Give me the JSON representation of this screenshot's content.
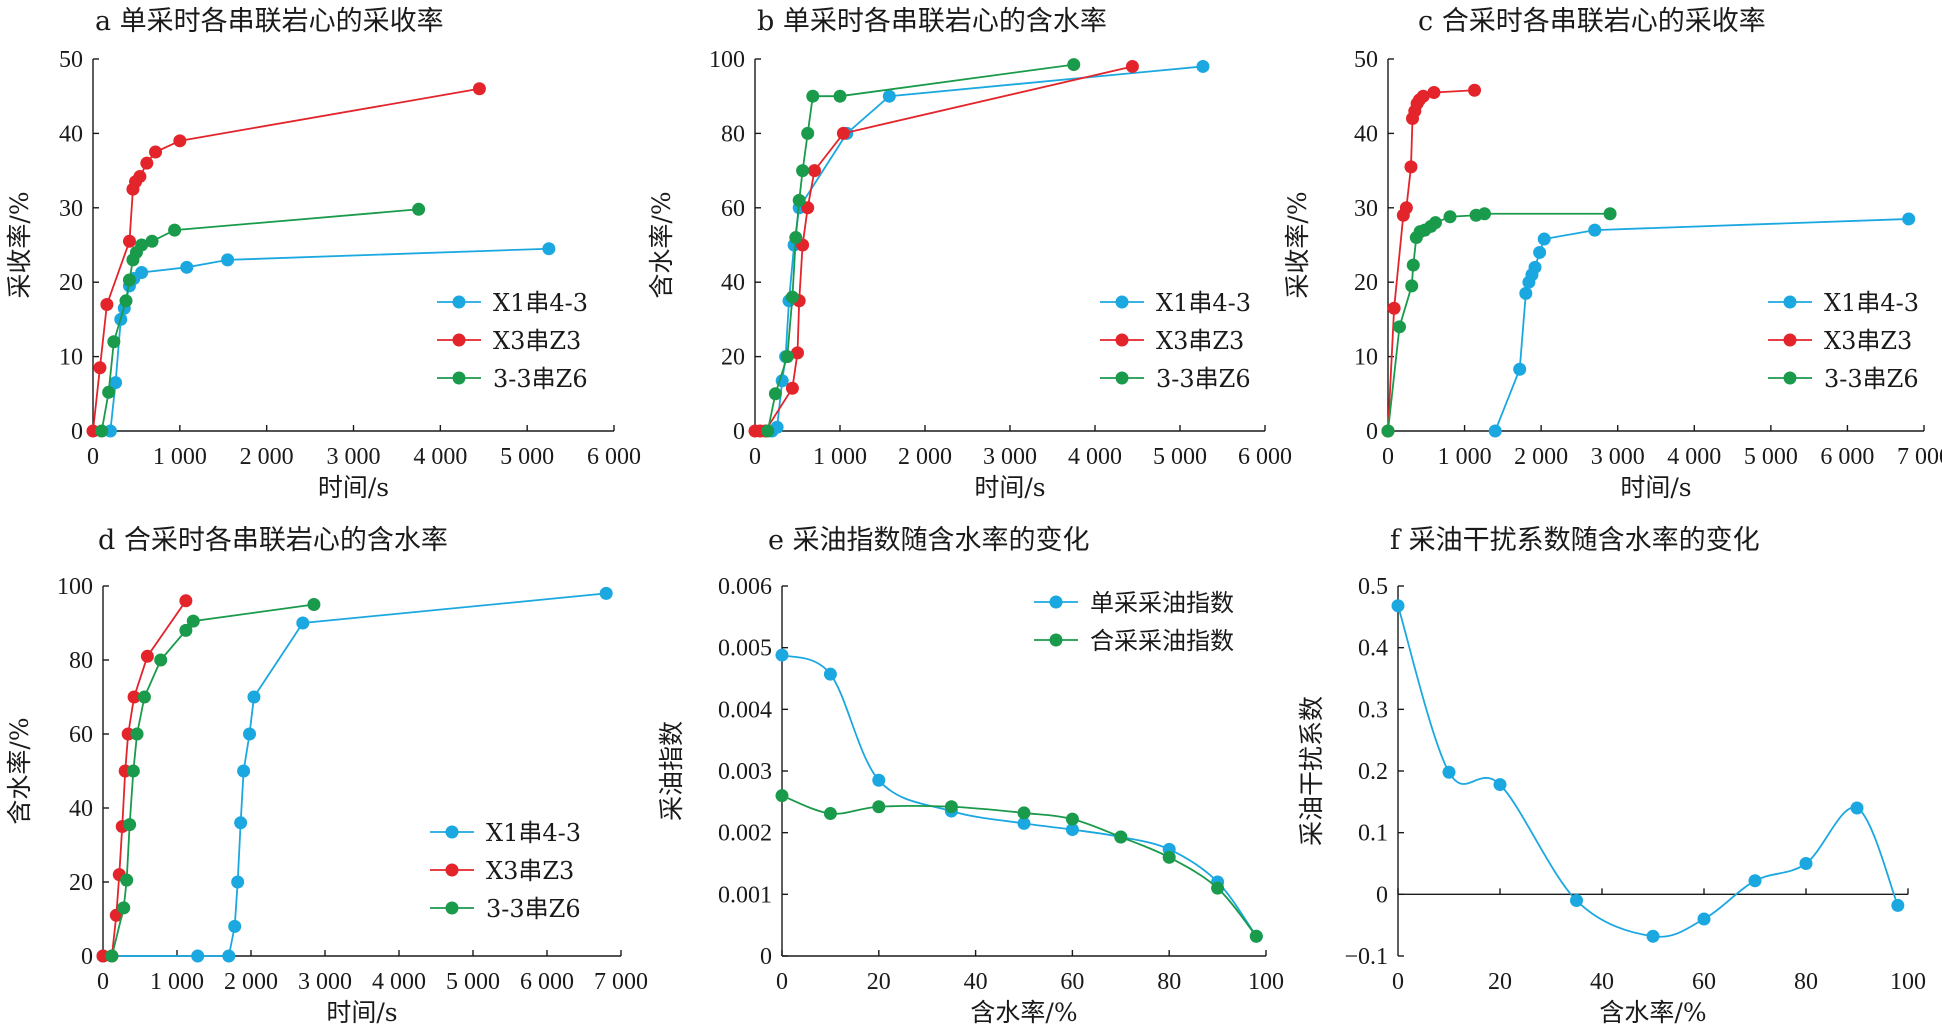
{
  "colors": {
    "blue": "#1ba8e0",
    "red": "#e3242b",
    "green": "#1a9a4b"
  },
  "chart_data": [
    {
      "id": "a",
      "type": "scatter-line",
      "title": "a 单采时各串联岩心的采收率",
      "xlabel": "时间/s",
      "ylabel": "采收率/%",
      "xlim": [
        0,
        6000
      ],
      "ylim": [
        0,
        50
      ],
      "xticks": [
        0,
        1000,
        2000,
        3000,
        4000,
        5000,
        6000
      ],
      "xtick_labels": [
        "0",
        "1 000",
        "2 000",
        "3 000",
        "4 000",
        "5 000",
        "6 000"
      ],
      "yticks": [
        0,
        10,
        20,
        30,
        40,
        50
      ],
      "ytick_labels": [
        "0",
        "10",
        "20",
        "30",
        "40",
        "50"
      ],
      "legend_position": "lower-right",
      "series": [
        {
          "name": "X1串4-3",
          "color": "blue",
          "x": [
            200,
            260,
            320,
            360,
            420,
            470,
            560,
            1080,
            1550,
            5250
          ],
          "y": [
            0,
            6.5,
            15,
            16.5,
            19.5,
            20.5,
            21.3,
            22,
            23,
            24.5
          ]
        },
        {
          "name": "X3串Z3",
          "color": "red",
          "x": [
            0,
            80,
            160,
            420,
            460,
            490,
            540,
            620,
            720,
            1000,
            4450
          ],
          "y": [
            0,
            8.5,
            17,
            25.5,
            32.5,
            33.5,
            34.2,
            36,
            37.5,
            39,
            46
          ]
        },
        {
          "name": "3-3串Z6",
          "color": "green",
          "x": [
            100,
            180,
            240,
            380,
            420,
            460,
            500,
            560,
            680,
            940,
            3750
          ],
          "y": [
            0,
            5.2,
            12,
            17.5,
            20.3,
            23,
            24,
            25,
            25.5,
            27,
            29.8
          ]
        }
      ]
    },
    {
      "id": "b",
      "type": "scatter-line",
      "title": "b 单采时各串联岩心的含水率",
      "xlabel": "时间/s",
      "ylabel": "含水率/%",
      "xlim": [
        0,
        6000
      ],
      "ylim": [
        0,
        100
      ],
      "xticks": [
        0,
        1000,
        2000,
        3000,
        4000,
        5000,
        6000
      ],
      "xtick_labels": [
        "0",
        "1 000",
        "2 000",
        "3 000",
        "4 000",
        "5 000",
        "6 000"
      ],
      "yticks": [
        0,
        20,
        40,
        60,
        80,
        100
      ],
      "ytick_labels": [
        "0",
        "20",
        "40",
        "60",
        "80",
        "100"
      ],
      "legend_position": "lower-right",
      "series": [
        {
          "name": "X1串4-3",
          "color": "blue",
          "x": [
            200,
            260,
            320,
            360,
            400,
            460,
            520,
            1080,
            1580,
            5270
          ],
          "y": [
            0,
            1,
            13.5,
            20,
            35,
            50,
            60,
            80,
            90,
            98
          ]
        },
        {
          "name": "X3串Z3",
          "color": "red",
          "x": [
            0,
            60,
            120,
            440,
            500,
            520,
            560,
            620,
            700,
            1040,
            4440
          ],
          "y": [
            0,
            0,
            0,
            11.5,
            21,
            35,
            50,
            60,
            70,
            80,
            98
          ]
        },
        {
          "name": "3-3串Z6",
          "color": "green",
          "x": [
            150,
            240,
            380,
            440,
            480,
            520,
            560,
            620,
            680,
            1000,
            3750
          ],
          "y": [
            0,
            10,
            20,
            36,
            52,
            62,
            70,
            80,
            90,
            90,
            98.5
          ]
        }
      ]
    },
    {
      "id": "c",
      "type": "scatter-line",
      "title": "c 合采时各串联岩心的采收率",
      "xlabel": "时间/s",
      "ylabel": "采收率/%",
      "xlim": [
        0,
        7000
      ],
      "ylim": [
        0,
        50
      ],
      "xticks": [
        0,
        1000,
        2000,
        3000,
        4000,
        5000,
        6000,
        7000
      ],
      "xtick_labels": [
        "0",
        "1 000",
        "2 000",
        "3 000",
        "4 000",
        "5 000",
        "6 000",
        "7 000"
      ],
      "yticks": [
        0,
        10,
        20,
        30,
        40,
        50
      ],
      "ytick_labels": [
        "0",
        "10",
        "20",
        "30",
        "40",
        "50"
      ],
      "legend_position": "lower-right",
      "series": [
        {
          "name": "X1串4-3",
          "color": "blue",
          "x": [
            1400,
            1720,
            1800,
            1840,
            1880,
            1920,
            1980,
            2040,
            2700,
            6800
          ],
          "y": [
            0,
            8.3,
            18.5,
            20,
            21,
            22,
            24,
            25.8,
            27,
            28.5
          ]
        },
        {
          "name": "X3串Z3",
          "color": "red",
          "x": [
            0,
            80,
            200,
            240,
            300,
            320,
            350,
            380,
            410,
            460,
            600,
            1130
          ],
          "y": [
            0,
            16.5,
            29,
            30,
            35.5,
            42,
            43,
            44,
            44.5,
            45,
            45.5,
            45.8
          ]
        },
        {
          "name": "3-3串Z6",
          "color": "green",
          "x": [
            0,
            150,
            310,
            330,
            370,
            420,
            480,
            560,
            620,
            810,
            1150,
            1260,
            2900
          ],
          "y": [
            0,
            14,
            19.5,
            22.3,
            26,
            26.8,
            27,
            27.5,
            28,
            28.8,
            29,
            29.2,
            29.2
          ]
        }
      ]
    },
    {
      "id": "d",
      "type": "scatter-line",
      "title": "d 合采时各串联岩心的含水率",
      "xlabel": "时间/s",
      "ylabel": "含水率/%",
      "xlim": [
        0,
        7000
      ],
      "ylim": [
        0,
        100
      ],
      "xticks": [
        0,
        1000,
        2000,
        3000,
        4000,
        5000,
        6000,
        7000
      ],
      "xtick_labels": [
        "0",
        "1 000",
        "2 000",
        "3 000",
        "4 000",
        "5 000",
        "6 000",
        "7 000"
      ],
      "yticks": [
        0,
        20,
        40,
        60,
        80,
        100
      ],
      "ytick_labels": [
        "0",
        "20",
        "40",
        "60",
        "80",
        "100"
      ],
      "legend_position": "lower-right",
      "series": [
        {
          "name": "X1串4-3",
          "color": "blue",
          "x": [
            0,
            1280,
            1700,
            1780,
            1820,
            1860,
            1900,
            1980,
            2040,
            2700,
            6800
          ],
          "y": [
            0,
            0,
            0,
            8,
            20,
            36,
            50,
            60,
            70,
            90,
            98
          ]
        },
        {
          "name": "X3串Z3",
          "color": "red",
          "x": [
            0,
            120,
            180,
            220,
            260,
            300,
            340,
            420,
            600,
            1120
          ],
          "y": [
            0,
            0,
            11,
            22,
            35,
            50,
            60,
            70,
            81,
            96
          ]
        },
        {
          "name": "3-3串Z6",
          "color": "green",
          "x": [
            120,
            280,
            320,
            360,
            410,
            460,
            560,
            780,
            1120,
            1220,
            2850
          ],
          "y": [
            0,
            13,
            20.5,
            35.5,
            50,
            60,
            70,
            80,
            88,
            90.5,
            95
          ]
        }
      ]
    },
    {
      "id": "e",
      "type": "line",
      "title": "e 采油指数随含水率的变化",
      "xlabel": "含水率/%",
      "ylabel": "采油指数",
      "xlim": [
        0,
        100
      ],
      "ylim": [
        0,
        0.006
      ],
      "xticks": [
        0,
        20,
        40,
        60,
        80,
        100
      ],
      "xtick_labels": [
        "0",
        "20",
        "40",
        "60",
        "80",
        "100"
      ],
      "yticks": [
        0,
        0.001,
        0.002,
        0.003,
        0.004,
        0.005,
        0.006
      ],
      "ytick_labels": [
        "0",
        "0.001",
        "0.002",
        "0.003",
        "0.004",
        "0.005",
        "0.006"
      ],
      "legend_position": "top-right",
      "series": [
        {
          "name": "单采采油指数",
          "color": "blue",
          "x": [
            0,
            10,
            20,
            35,
            50,
            60,
            70,
            80,
            90,
            98
          ],
          "y": [
            0.00488,
            0.00457,
            0.00285,
            0.00235,
            0.00215,
            0.00205,
            0.00193,
            0.00173,
            0.0012,
            0.00032
          ]
        },
        {
          "name": "合采采油指数",
          "color": "green",
          "x": [
            0,
            10,
            20,
            35,
            50,
            60,
            70,
            80,
            90,
            98
          ],
          "y": [
            0.0026,
            0.00231,
            0.00242,
            0.00242,
            0.00232,
            0.00222,
            0.00193,
            0.0016,
            0.0011,
            0.00032
          ]
        }
      ]
    },
    {
      "id": "f",
      "type": "line",
      "title": "f 采油干扰系数随含水率的变化",
      "xlabel": "含水率/%",
      "ylabel": "采油干扰系数",
      "xlim": [
        0,
        100
      ],
      "ylim": [
        -0.1,
        0.5
      ],
      "xticks": [
        0,
        20,
        40,
        60,
        80,
        100
      ],
      "xtick_labels": [
        "0",
        "20",
        "40",
        "60",
        "80",
        "100"
      ],
      "yticks": [
        -0.1,
        0,
        0.1,
        0.2,
        0.3,
        0.4,
        0.5
      ],
      "ytick_labels": [
        "−0.1",
        "0",
        "0.1",
        "0.2",
        "0.3",
        "0.4",
        "0.5"
      ],
      "legend_position": "none",
      "series": [
        {
          "name": "",
          "color": "blue",
          "x": [
            0,
            10,
            20,
            35,
            50,
            60,
            70,
            80,
            90,
            98
          ],
          "y": [
            0.468,
            0.198,
            0.178,
            -0.01,
            -0.068,
            -0.04,
            0.022,
            0.05,
            0.14,
            -0.018
          ]
        }
      ]
    }
  ]
}
